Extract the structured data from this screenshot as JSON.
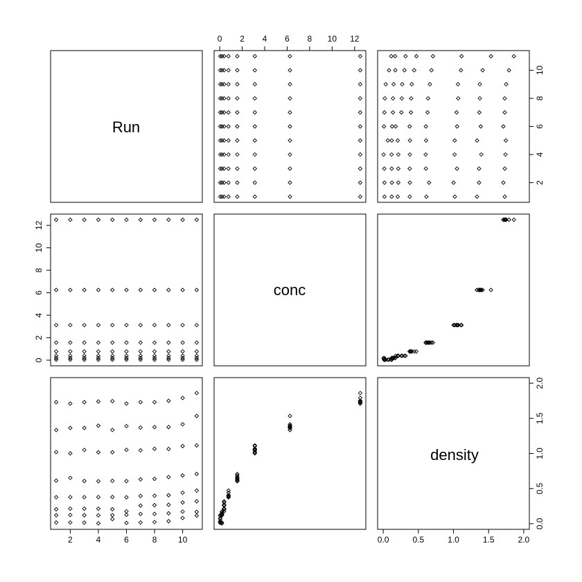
{
  "chart_data": {
    "type": "scatter",
    "variables": [
      "Run",
      "conc",
      "density"
    ],
    "axes": {
      "Run": {
        "range": [
          1,
          11
        ],
        "ticks": [
          2,
          4,
          6,
          8,
          10
        ]
      },
      "conc": {
        "range": [
          0,
          12.5
        ],
        "ticks": [
          0,
          2,
          4,
          6,
          8,
          10,
          12
        ]
      },
      "density": {
        "range": [
          0,
          2
        ],
        "ticks": [
          0.0,
          0.5,
          1.0,
          1.5,
          2.0
        ],
        "tick_labels": [
          "0.0",
          "0.5",
          "1.0",
          "1.5",
          "2.0"
        ]
      }
    },
    "runs": [
      1,
      2,
      3,
      4,
      5,
      6,
      7,
      8,
      9,
      10,
      11
    ],
    "conc_levels": [
      0.04882812,
      0.1953125,
      0.390625,
      0.78125,
      1.5625,
      3.125,
      6.25,
      12.5
    ],
    "density": [
      [
        0.017,
        0.121,
        0.206,
        0.377,
        0.614,
        1.019,
        1.334,
        1.73
      ],
      [
        0.018,
        0.124,
        0.215,
        0.379,
        0.653,
        1.001,
        1.364,
        1.71
      ],
      [
        0.121,
        0.016,
        0.215,
        0.377,
        0.608,
        1.05,
        1.364,
        1.73
      ],
      [
        0.119,
        0.005,
        0.215,
        0.379,
        0.604,
        1.016,
        1.396,
        1.74
      ],
      [
        0.066,
        0.121,
        0.206,
        0.38,
        0.61,
        1.017,
        1.335,
        1.745
      ],
      [
        0.011,
        0.127,
        0.177,
        0.376,
        0.607,
        1.052,
        1.389,
        1.71
      ],
      [
        0.017,
        0.138,
        0.258,
        0.395,
        0.631,
        1.044,
        1.368,
        1.73
      ],
      [
        0.023,
        0.139,
        0.264,
        0.398,
        0.639,
        1.067,
        1.375,
        1.73
      ],
      [
        0.036,
        0.148,
        0.27,
        0.406,
        0.664,
        1.064,
        1.375,
        1.75
      ],
      [
        0.082,
        0.172,
        0.302,
        0.441,
        0.687,
        1.105,
        1.415,
        1.79
      ],
      [
        0.115,
        0.169,
        0.318,
        0.472,
        0.708,
        1.115,
        1.534,
        1.86
      ]
    ],
    "title": "",
    "grid": false
  }
}
